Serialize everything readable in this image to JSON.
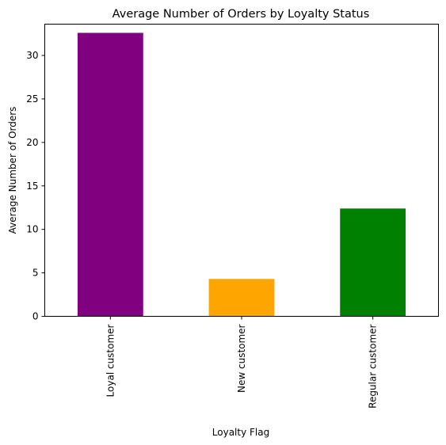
{
  "chart_data": {
    "type": "bar",
    "title": "Average Number of Orders by Loyalty Status",
    "xlabel": "Loyalty Flag",
    "ylabel": "Average Number of Orders",
    "categories": [
      "Loyal customer",
      "New customer",
      "Regular customer"
    ],
    "values": [
      32.6,
      4.3,
      12.4
    ],
    "colors": [
      "#800080",
      "#FFA500",
      "#008000"
    ],
    "ylim": [
      0,
      33.6
    ],
    "yticks": [
      0,
      5,
      10,
      15,
      20,
      25,
      30
    ],
    "grid": false,
    "legend": "none"
  }
}
